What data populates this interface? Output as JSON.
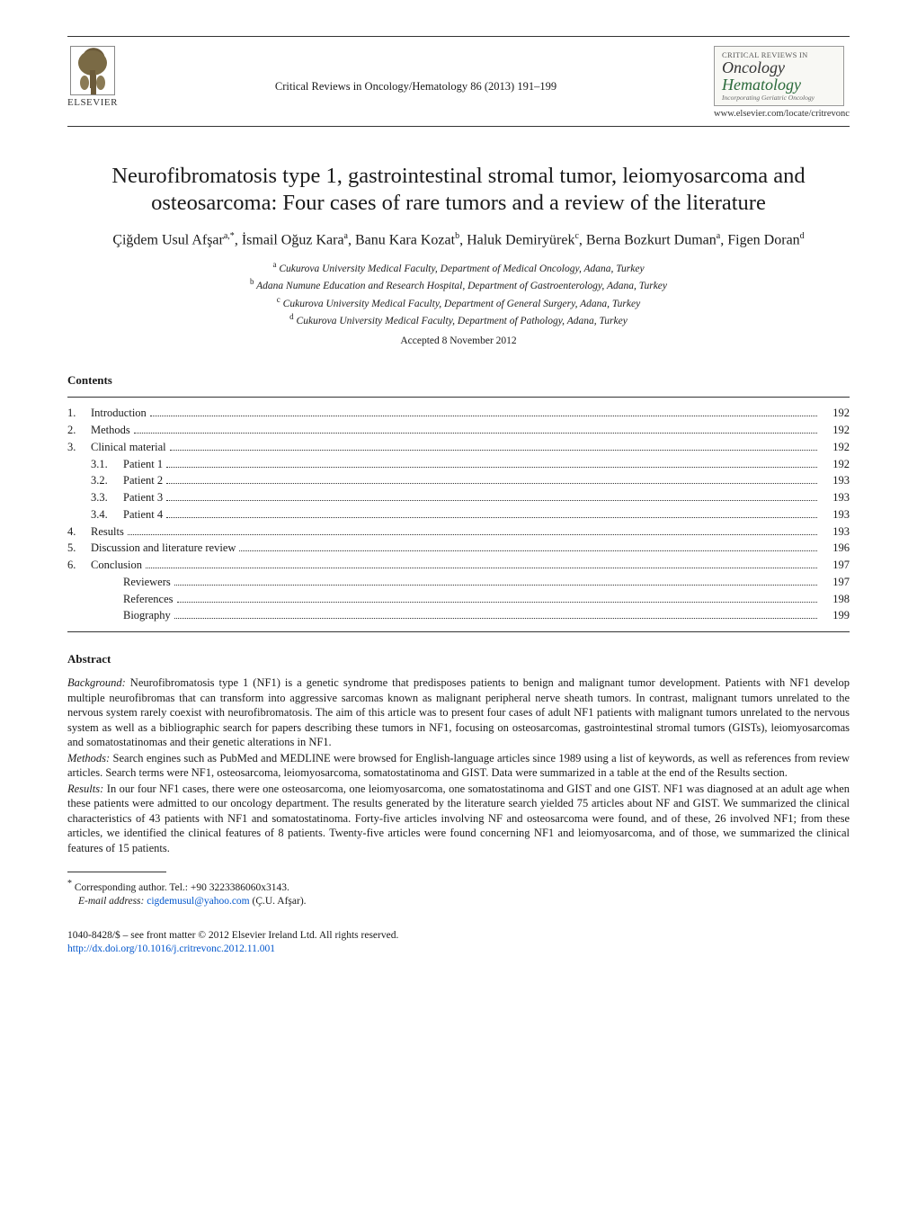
{
  "header": {
    "publisher_name": "ELSEVIER",
    "journal_reference": "Critical Reviews in Oncology/Hematology 86 (2013) 191–199",
    "cover": {
      "line1_small": "CRITICAL REVIEWS IN",
      "line2_italic": "Oncology",
      "line3_italic": "Hematology",
      "line4_sub": "Incorporating Geriatric Oncology"
    },
    "journal_url": "www.elsevier.com/locate/critrevonc"
  },
  "title": "Neurofibromatosis type 1, gastrointestinal stromal tumor, leiomyosarcoma and osteosarcoma: Four cases of rare tumors and a review of the literature",
  "authors_html": "Çiğdem Usul Afşar<sup>a,*</sup>, İsmail Oğuz Kara<sup>a</sup>, Banu Kara Kozat<sup>b</sup>, Haluk Demiryürek<sup>c</sup>, Berna Bozkurt Duman<sup>a</sup>, Figen Doran<sup>d</sup>",
  "affiliations": [
    {
      "key": "a",
      "text": "Cukurova University Medical Faculty, Department of Medical Oncology, Adana, Turkey"
    },
    {
      "key": "b",
      "text": "Adana Numune Education and Research Hospital, Department of Gastroenterology, Adana, Turkey"
    },
    {
      "key": "c",
      "text": "Cukurova University Medical Faculty, Department of General Surgery, Adana, Turkey"
    },
    {
      "key": "d",
      "text": "Cukurova University Medical Faculty, Department of Pathology, Adana, Turkey"
    }
  ],
  "accepted": "Accepted 8 November 2012",
  "contents_heading": "Contents",
  "toc": [
    {
      "num": "1.",
      "label": "Introduction",
      "page": "192",
      "indent": 0
    },
    {
      "num": "2.",
      "label": "Methods",
      "page": "192",
      "indent": 0
    },
    {
      "num": "3.",
      "label": "Clinical material",
      "page": "192",
      "indent": 0
    },
    {
      "num": "3.1.",
      "label": "Patient 1",
      "page": "192",
      "indent": 1
    },
    {
      "num": "3.2.",
      "label": "Patient 2",
      "page": "193",
      "indent": 1
    },
    {
      "num": "3.3.",
      "label": "Patient 3",
      "page": "193",
      "indent": 1
    },
    {
      "num": "3.4.",
      "label": "Patient 4",
      "page": "193",
      "indent": 1
    },
    {
      "num": "4.",
      "label": "Results",
      "page": "193",
      "indent": 0
    },
    {
      "num": "5.",
      "label": "Discussion and literature review",
      "page": "196",
      "indent": 0
    },
    {
      "num": "6.",
      "label": "Conclusion",
      "page": "197",
      "indent": 0
    },
    {
      "num": "",
      "label": "Reviewers",
      "page": "197",
      "indent": 1
    },
    {
      "num": "",
      "label": "References",
      "page": "198",
      "indent": 1
    },
    {
      "num": "",
      "label": "Biography",
      "page": "199",
      "indent": 1
    }
  ],
  "abstract_heading": "Abstract",
  "abstract": {
    "background_label": "Background:",
    "background_text": "Neurofibromatosis type 1 (NF1) is a genetic syndrome that predisposes patients to benign and malignant tumor development. Patients with NF1 develop multiple neurofibromas that can transform into aggressive sarcomas known as malignant peripheral nerve sheath tumors. In contrast, malignant tumors unrelated to the nervous system rarely coexist with neurofibromatosis. The aim of this article was to present four cases of adult NF1 patients with malignant tumors unrelated to the nervous system as well as a bibliographic search for papers describing these tumors in NF1, focusing on osteosarcomas, gastrointestinal stromal tumors (GISTs), leiomyosarcomas and somatostatinomas and their genetic alterations in NF1.",
    "methods_label": "Methods:",
    "methods_text": "Search engines such as PubMed and MEDLINE were browsed for English-language articles since 1989 using a list of keywords, as well as references from review articles. Search terms were NF1, osteosarcoma, leiomyosarcoma, somatostatinoma and GIST. Data were summarized in a table at the end of the Results section.",
    "results_label": "Results:",
    "results_text": "In our four NF1 cases, there were one osteosarcoma, one leiomyosarcoma, one somatostatinoma and GIST and one GIST. NF1 was diagnosed at an adult age when these patients were admitted to our oncology department. The results generated by the literature search yielded 75 articles about NF and GIST. We summarized the clinical characteristics of 43 patients with NF1 and somatostatinoma. Forty-five articles involving NF and osteosarcoma were found, and of these, 26 involved NF1; from these articles, we identified the clinical features of 8 patients. Twenty-five articles were found concerning NF1 and leiomyosarcoma, and of those, we summarized the clinical features of 15 patients."
  },
  "corresponding": {
    "star": "*",
    "line1": "Corresponding author. Tel.: +90 3223386060x3143.",
    "email_label": "E-mail address:",
    "email": "cigdemusul@yahoo.com",
    "email_tail": "(Ç.U. Afşar)."
  },
  "footer": {
    "copyright": "1040-8428/$ – see front matter © 2012 Elsevier Ireland Ltd. All rights reserved.",
    "doi": "http://dx.doi.org/10.1016/j.critrevonc.2012.11.001"
  },
  "colors": {
    "text": "#1a1a1a",
    "link": "#0055cc",
    "hematology_green": "#2a6a3a",
    "rule": "#333333",
    "background": "#ffffff"
  },
  "typography": {
    "title_fontsize_pt": 18,
    "authors_fontsize_pt": 12,
    "body_fontsize_pt": 9.5,
    "font_family": "Times New Roman"
  }
}
